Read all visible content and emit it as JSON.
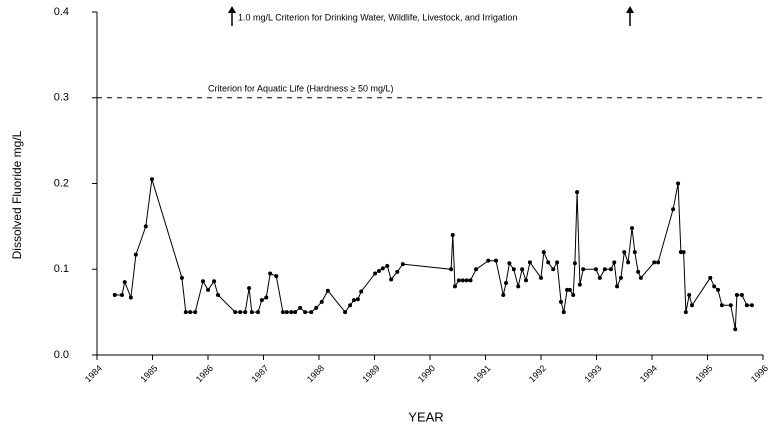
{
  "chart_data": {
    "type": "line",
    "annotation_top": "1.0 mg/L Criterion for Drinking Water, Wildlife, Livestock, and Irrigation",
    "annotation_line": "Criterion for Aquatic Life (Hardness ≥ 50 mg/L)",
    "reference_line": 0.3,
    "x_label": "YEAR",
    "y_label": "Dissolved Fluoride mg/L",
    "xlim": [
      1984,
      1996
    ],
    "xticks": [
      1984,
      1985,
      1986,
      1987,
      1988,
      1989,
      1990,
      1991,
      1992,
      1993,
      1994,
      1995,
      1996
    ],
    "ylim": [
      0,
      0.4
    ],
    "yticks": [
      {
        "value": 0,
        "label": "0.0"
      },
      0.1,
      0.2,
      0.3,
      0.4
    ],
    "color": "#000000",
    "x": [
      1984.32,
      1984.45,
      1984.5,
      1984.61,
      1984.7,
      1984.88,
      1984.99,
      1985.53,
      1985.6,
      1985.68,
      1985.77,
      1985.91,
      1986.0,
      1986.11,
      1986.18,
      1986.49,
      1986.58,
      1986.67,
      1986.74,
      1986.79,
      1986.9,
      1986.97,
      1987.05,
      1987.12,
      1987.23,
      1987.35,
      1987.42,
      1987.5,
      1987.57,
      1987.66,
      1987.75,
      1987.86,
      1987.95,
      1988.05,
      1988.16,
      1988.47,
      1988.56,
      1988.63,
      1988.7,
      1988.76,
      1989.01,
      1989.08,
      1989.15,
      1989.23,
      1989.3,
      1989.41,
      1989.51,
      1990.38,
      1990.41,
      1990.45,
      1990.52,
      1990.59,
      1990.66,
      1990.73,
      1990.83,
      1991.05,
      1991.19,
      1991.32,
      1991.37,
      1991.43,
      1991.51,
      1991.59,
      1991.66,
      1991.73,
      1991.8,
      1992.0,
      1992.05,
      1992.13,
      1992.22,
      1992.29,
      1992.36,
      1992.41,
      1992.47,
      1992.52,
      1992.58,
      1992.61,
      1992.65,
      1992.7,
      1992.76,
      1992.99,
      1993.06,
      1993.15,
      1993.26,
      1993.32,
      1993.37,
      1993.44,
      1993.5,
      1993.57,
      1993.64,
      1993.69,
      1993.75,
      1993.8,
      1994.04,
      1994.11,
      1994.38,
      1994.47,
      1994.52,
      1994.57,
      1994.61,
      1994.67,
      1994.72,
      1995.05,
      1995.12,
      1995.19,
      1995.26,
      1995.42,
      1995.5,
      1995.53,
      1995.62,
      1995.71,
      1995.8
    ],
    "values": [
      0.07,
      0.07,
      0.085,
      0.067,
      0.117,
      0.15,
      0.205,
      0.09,
      0.05,
      0.05,
      0.05,
      0.086,
      0.076,
      0.086,
      0.07,
      0.05,
      0.05,
      0.05,
      0.078,
      0.05,
      0.05,
      0.064,
      0.067,
      0.095,
      0.092,
      0.05,
      0.05,
      0.05,
      0.05,
      0.055,
      0.05,
      0.05,
      0.055,
      0.062,
      0.075,
      0.05,
      0.058,
      0.064,
      0.065,
      0.074,
      0.095,
      0.098,
      0.101,
      0.104,
      0.088,
      0.097,
      0.106,
      0.1,
      0.14,
      0.08,
      0.087,
      0.087,
      0.087,
      0.087,
      0.1,
      0.11,
      0.11,
      0.07,
      0.084,
      0.107,
      0.1,
      0.08,
      0.1,
      0.087,
      0.108,
      0.09,
      0.12,
      0.108,
      0.1,
      0.108,
      0.062,
      0.05,
      0.076,
      0.076,
      0.07,
      0.107,
      0.19,
      0.082,
      0.1,
      0.1,
      0.09,
      0.1,
      0.1,
      0.108,
      0.08,
      0.09,
      0.12,
      0.108,
      0.148,
      0.12,
      0.097,
      0.09,
      0.108,
      0.108,
      0.17,
      0.2,
      0.12,
      0.12,
      0.05,
      0.07,
      0.058,
      0.09,
      0.08,
      0.076,
      0.058,
      0.058,
      0.03,
      0.07,
      0.07,
      0.058,
      0.058
    ]
  }
}
